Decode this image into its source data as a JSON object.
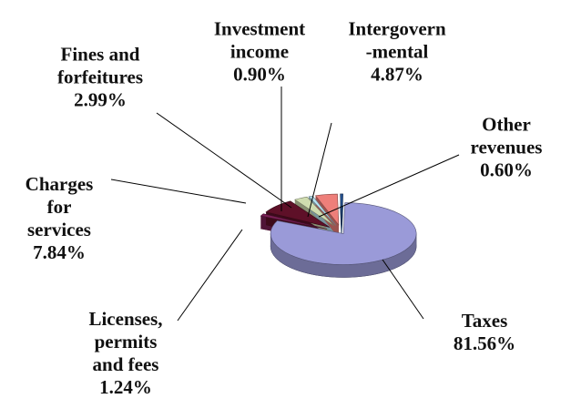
{
  "chart_data": {
    "type": "pie",
    "categories": [
      "Taxes",
      "Licenses,\npermits\nand fees",
      "Charges\nfor\nservices",
      "Fines and\nforfeitures",
      "Investment\nincome",
      "Intergovern\n-mental",
      "Other\nrevenues"
    ],
    "values": [
      81.56,
      1.24,
      7.84,
      2.99,
      0.9,
      4.87,
      0.6
    ],
    "value_labels": [
      "81.56%",
      "1.24%",
      "7.84%",
      "2.99%",
      "0.90%",
      "4.87%",
      "0.60%"
    ],
    "colors": [
      "#9a9ad8",
      "#7b1f55",
      "#5e1028",
      "#cfdcb0",
      "#b7e3f2",
      "#ee7f7a",
      "#24508e"
    ]
  }
}
